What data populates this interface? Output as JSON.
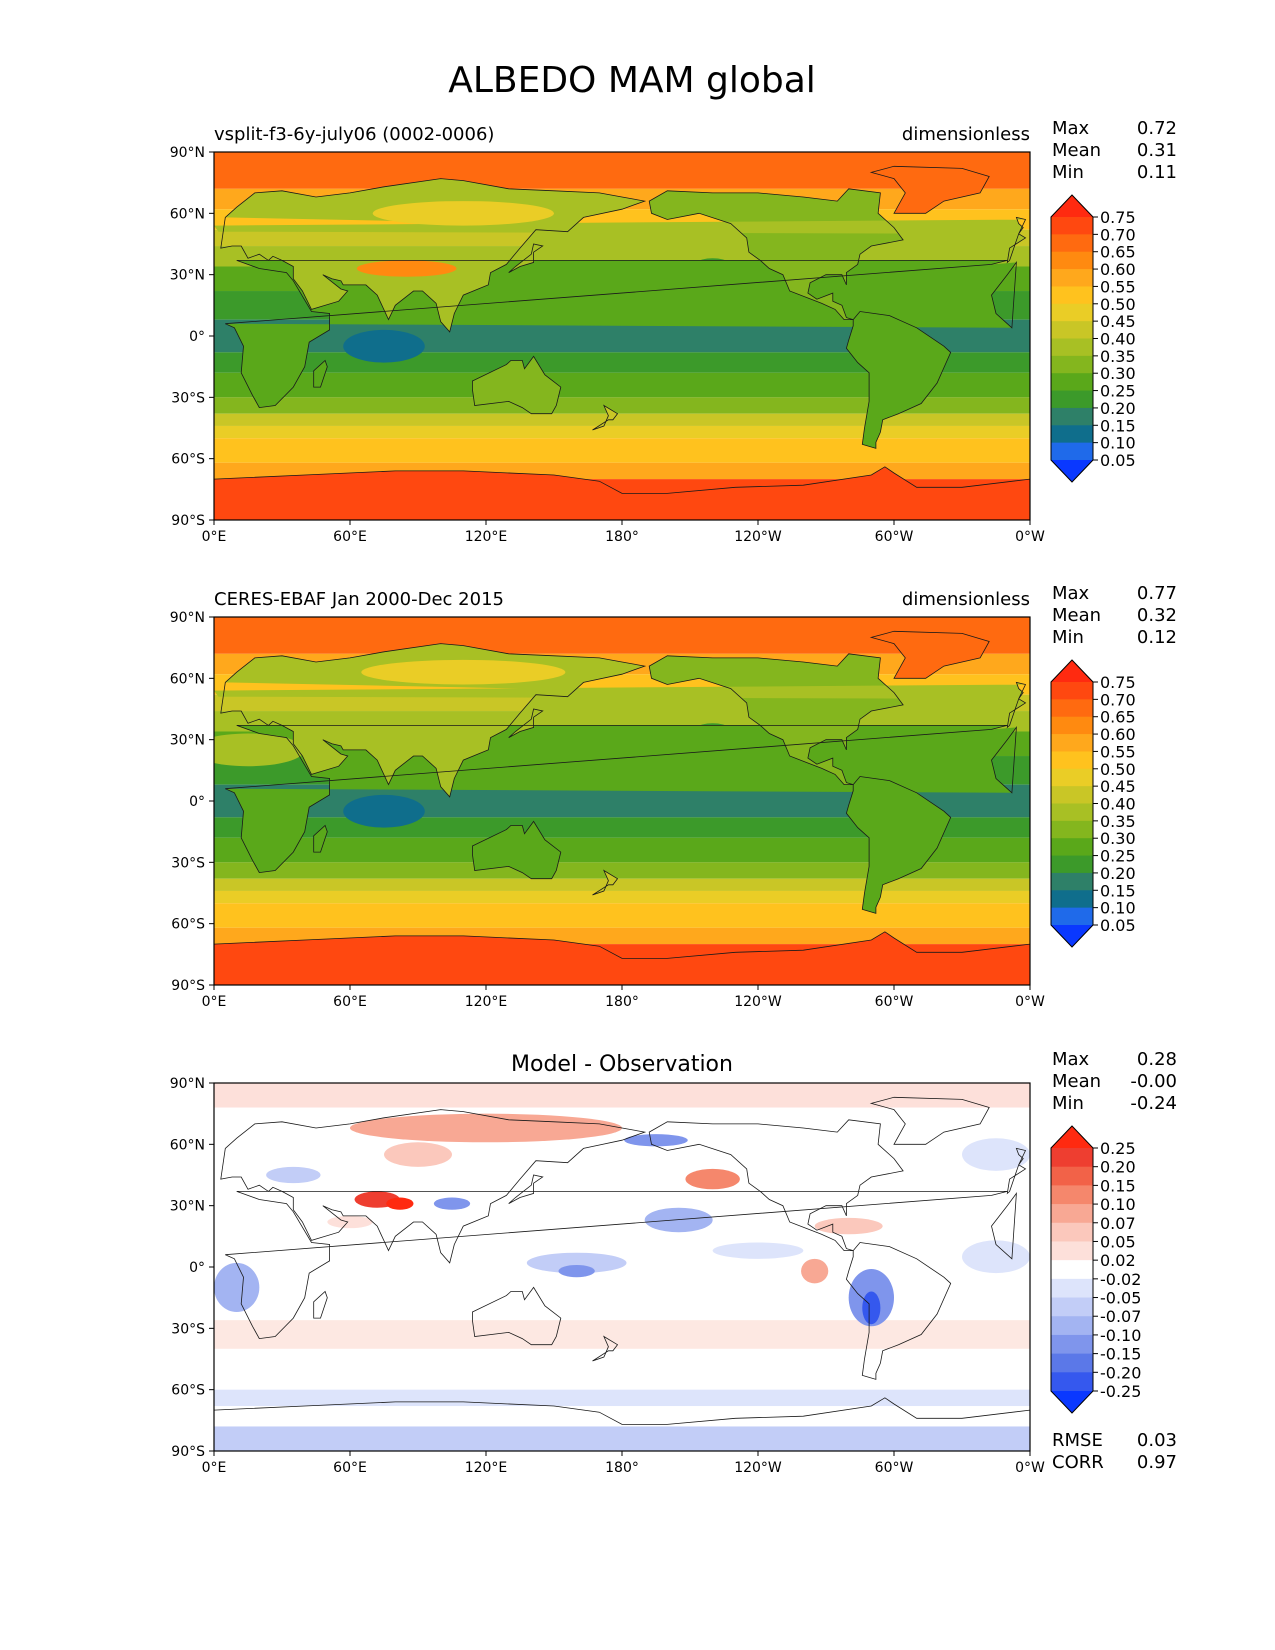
{
  "figure": {
    "title": "ALBEDO MAM global"
  },
  "x_ticks": [
    "0°E",
    "60°E",
    "120°E",
    "180°",
    "120°W",
    "60°W",
    "0°W"
  ],
  "y_ticks": [
    "90°N",
    "60°N",
    "30°N",
    "0°",
    "30°S",
    "60°S",
    "90°S"
  ],
  "panels": [
    {
      "title_left": "vsplit-f3-6y-july06 (0002-0006)",
      "title_right": "dimensionless",
      "title_center": "",
      "stats": [
        {
          "label": "Max",
          "value": "0.72"
        },
        {
          "label": "Mean",
          "value": "0.31"
        },
        {
          "label": "Min",
          "value": "0.11"
        }
      ],
      "colorbar_labels": [
        "0.75",
        "0.70",
        "0.65",
        "0.60",
        "0.55",
        "0.50",
        "0.45",
        "0.40",
        "0.35",
        "0.30",
        "0.25",
        "0.20",
        "0.15",
        "0.10",
        "0.05"
      ],
      "colorbar_colors": [
        "#ff2a10",
        "#ff4810",
        "#ff6a10",
        "#ff8a10",
        "#ffa81c",
        "#ffc21e",
        "#eacd26",
        "#c9c626",
        "#a8c024",
        "#84b61e",
        "#5aa81a",
        "#3c9a2a",
        "#2e8068",
        "#0f6e8c",
        "#1f6aea",
        "#0a38ff"
      ],
      "map_palette": "albedo"
    },
    {
      "title_left": "CERES-EBAF Jan 2000-Dec 2015",
      "title_right": "dimensionless",
      "title_center": "",
      "stats": [
        {
          "label": "Max",
          "value": "0.77"
        },
        {
          "label": "Mean",
          "value": "0.32"
        },
        {
          "label": "Min",
          "value": "0.12"
        }
      ],
      "colorbar_labels": [
        "0.75",
        "0.70",
        "0.65",
        "0.60",
        "0.55",
        "0.50",
        "0.45",
        "0.40",
        "0.35",
        "0.30",
        "0.25",
        "0.20",
        "0.15",
        "0.10",
        "0.05"
      ],
      "colorbar_colors": [
        "#ff2a10",
        "#ff4810",
        "#ff6a10",
        "#ff8a10",
        "#ffa81c",
        "#ffc21e",
        "#eacd26",
        "#c9c626",
        "#a8c024",
        "#84b61e",
        "#5aa81a",
        "#3c9a2a",
        "#2e8068",
        "#0f6e8c",
        "#1f6aea",
        "#0a38ff"
      ],
      "map_palette": "albedo"
    },
    {
      "title_left": "",
      "title_right": "",
      "title_center": "Model - Observation",
      "stats": [
        {
          "label": "Max",
          "value": "0.28"
        },
        {
          "label": "Mean",
          "value": "-0.00"
        },
        {
          "label": "Min",
          "value": "-0.24"
        }
      ],
      "colorbar_labels": [
        "0.25",
        "0.20",
        "0.15",
        "0.10",
        "0.07",
        "0.05",
        "0.02",
        "-0.02",
        "-0.05",
        "-0.07",
        "-0.10",
        "-0.15",
        "-0.20",
        "-0.25"
      ],
      "colorbar_colors": [
        "#ff2a10",
        "#ee3e30",
        "#f26248",
        "#f5876c",
        "#f8a894",
        "#fbc8bc",
        "#fde0da",
        "#ffffff",
        "#dde4fb",
        "#c2cdf7",
        "#a3b4f2",
        "#7f95ec",
        "#5b78e8",
        "#3558ee",
        "#0a38ff"
      ],
      "bottom_stats": [
        {
          "label": "RMSE",
          "value": "0.03"
        },
        {
          "label": "CORR",
          "value": "0.97"
        }
      ],
      "map_palette": "diff"
    }
  ]
}
